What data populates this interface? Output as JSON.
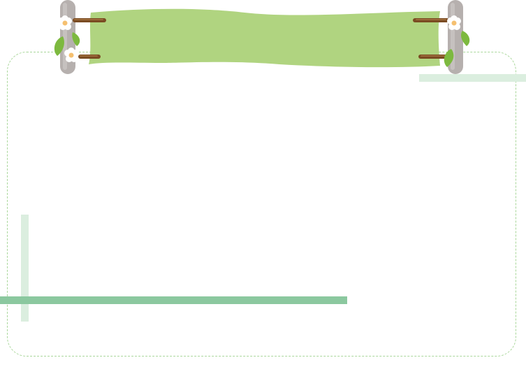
{
  "banner": {
    "title": ""
  },
  "icons": {
    "left_post": "wooden-post-icon",
    "right_post": "wooden-post-icon",
    "flower": "white-flower-icon",
    "leaf": "green-leaf-icon"
  },
  "colors": {
    "banner_fill": "#b0d480",
    "frame_dash": "#a9d79a",
    "accent_light": "#dbeedf",
    "accent_dark": "#8bc89f",
    "post": "#b6b0ae",
    "peg": "#7a4b22",
    "leaf": "#7db93f"
  }
}
